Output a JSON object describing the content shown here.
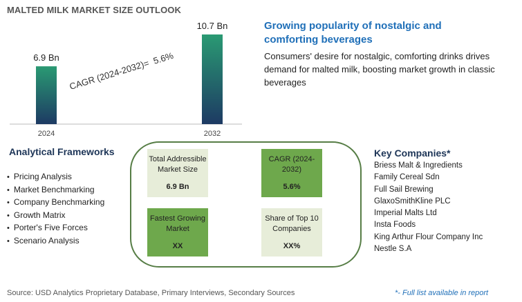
{
  "title": "MALTED MILK MARKET SIZE OUTLOOK",
  "chart_data": {
    "type": "bar",
    "categories": [
      "2024",
      "2032"
    ],
    "values": [
      6.9,
      10.7
    ],
    "value_labels": [
      "6.9 Bn",
      "10.7 Bn"
    ],
    "ylim": [
      0,
      10.7
    ],
    "cagr_label": "CAGR (2024-2032)=  5.6%",
    "bar_color_top": "#2a9a73",
    "bar_color_bottom": "#1d3a63"
  },
  "headline": "Growing popularity of nostalgic and comforting beverages",
  "description": "Consumers' desire for nostalgic, comforting drinks drives demand for malted milk, boosting market growth in classic beverages",
  "frameworks": {
    "title": "Analytical Frameworks",
    "items": [
      "Pricing Analysis",
      "Market Benchmarking",
      "Company Benchmarking",
      "Growth Matrix",
      "Porter's Five Forces",
      "Scenario Analysis"
    ]
  },
  "cards": {
    "tam": {
      "label": "Total Addressible Market Size",
      "value": "6.9 Bn"
    },
    "cagr": {
      "label": "CAGR (2024-2032)",
      "value": "5.6%"
    },
    "fastest": {
      "label": "Fastest Growing Market",
      "value": "XX"
    },
    "share": {
      "label": "Share of Top 10 Companies",
      "value": "XX%"
    }
  },
  "companies": {
    "title": "Key Companies*",
    "items": [
      "Briess Malt & Ingredients",
      "Family Cereal Sdn",
      "Full Sail Brewing",
      "GlaxoSmithKline PLC",
      "Imperial Malts Ltd",
      "Insta Foods",
      "King Arthur Flour Company Inc",
      "Nestle S.A"
    ]
  },
  "source": "Source: USD Analytics Proprietary Database, Primary Interviews, Secondary Sources",
  "footnote": "*- Full list available in report",
  "colors": {
    "panel_border": "#567d45",
    "card_light": "#e7edd9",
    "card_dark": "#6ea84c",
    "headline": "#1f6fb8"
  }
}
